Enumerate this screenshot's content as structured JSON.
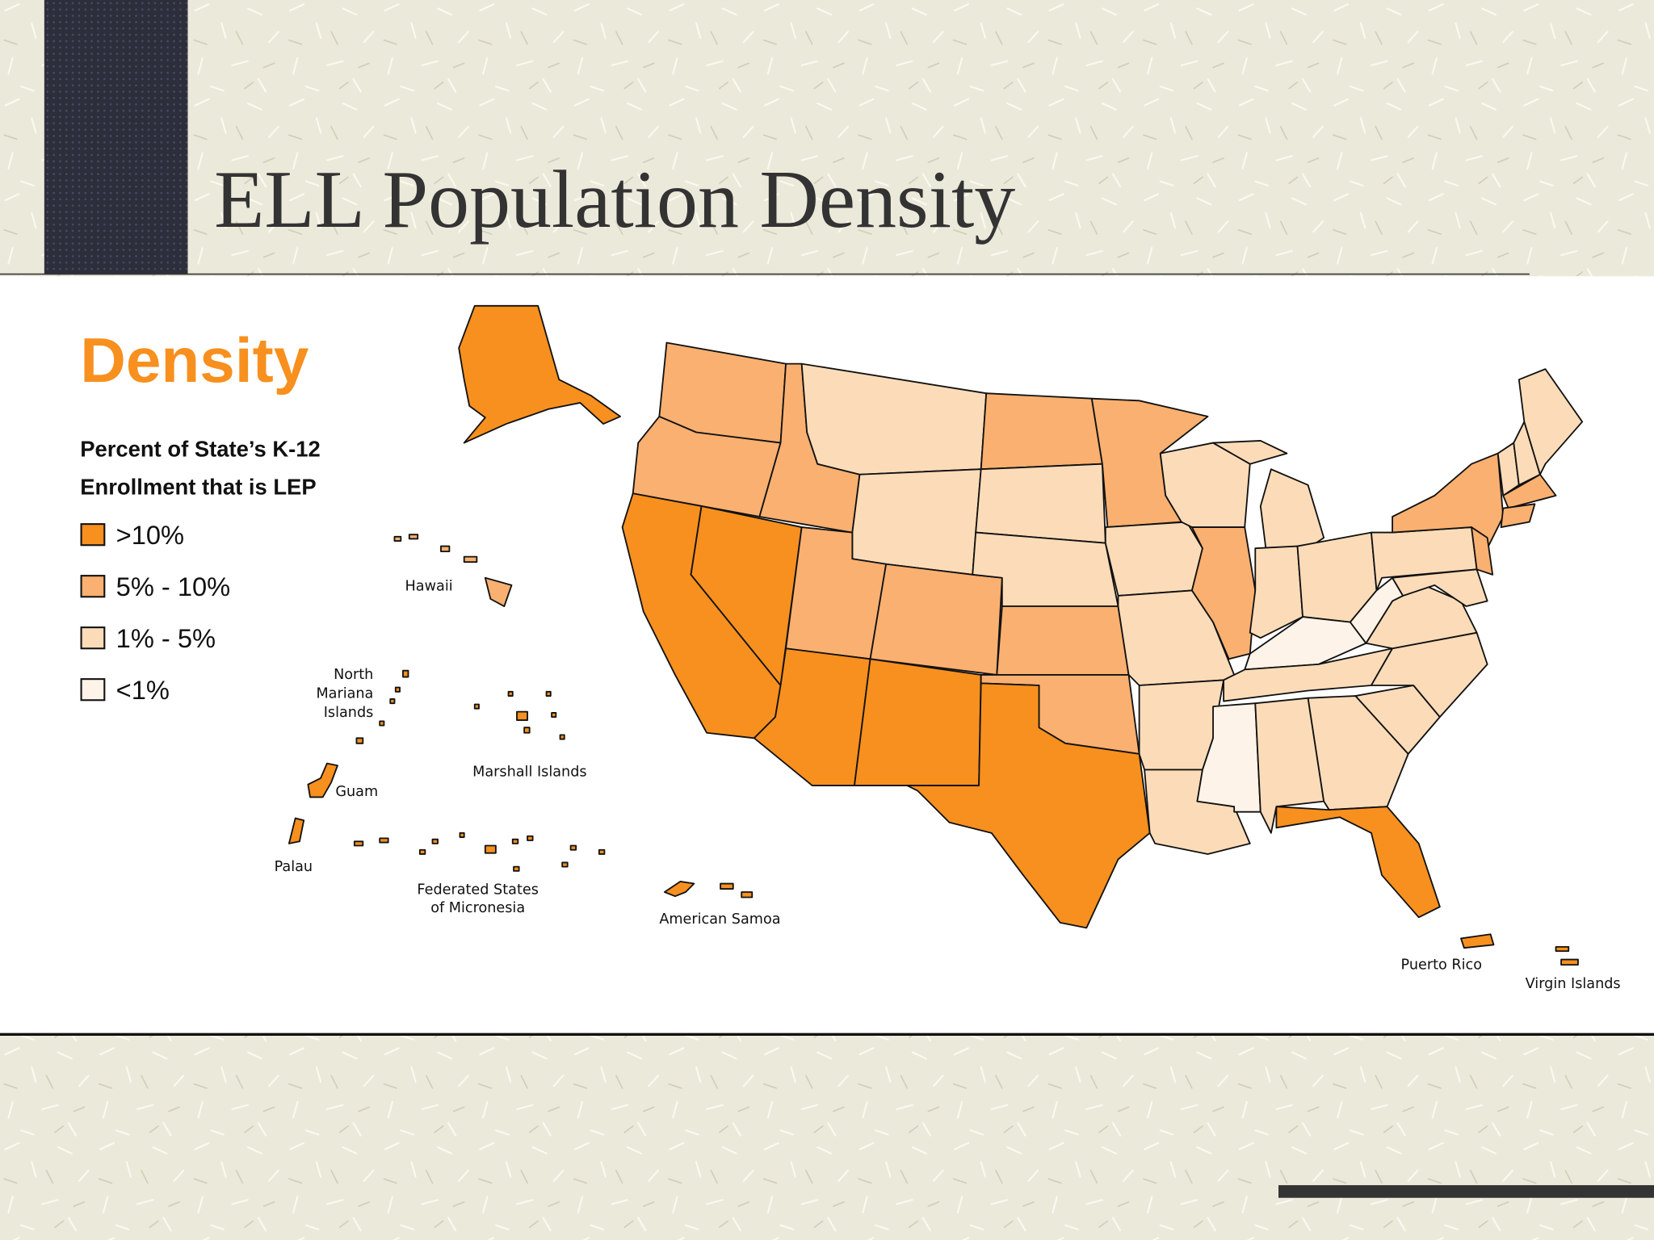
{
  "slide": {
    "title": "ELL Population Density"
  },
  "map": {
    "heading": "Density",
    "subtitle": [
      "Percent of State’s K-12",
      "Enrollment that is LEP"
    ],
    "legend": [
      {
        "label": ">10%",
        "color": "#f7901e"
      },
      {
        "label": "5% - 10%",
        "color": "#f9b070"
      },
      {
        "label": "1% - 5%",
        "color": "#fcdcb8"
      },
      {
        "label": "<1%",
        "color": "#fef3e8"
      }
    ],
    "labels": {
      "hawaii": "Hawaii",
      "north_mariana": [
        "North",
        "Mariana",
        "Islands"
      ],
      "guam": "Guam",
      "palau": "Palau",
      "marshall": "Marshall Islands",
      "micronesia": [
        "Federated States",
        "of Micronesia"
      ],
      "american_samoa": "American Samoa",
      "puerto_rico": "Puerto Rico",
      "virgin_islands": "Virgin Islands"
    }
  }
}
